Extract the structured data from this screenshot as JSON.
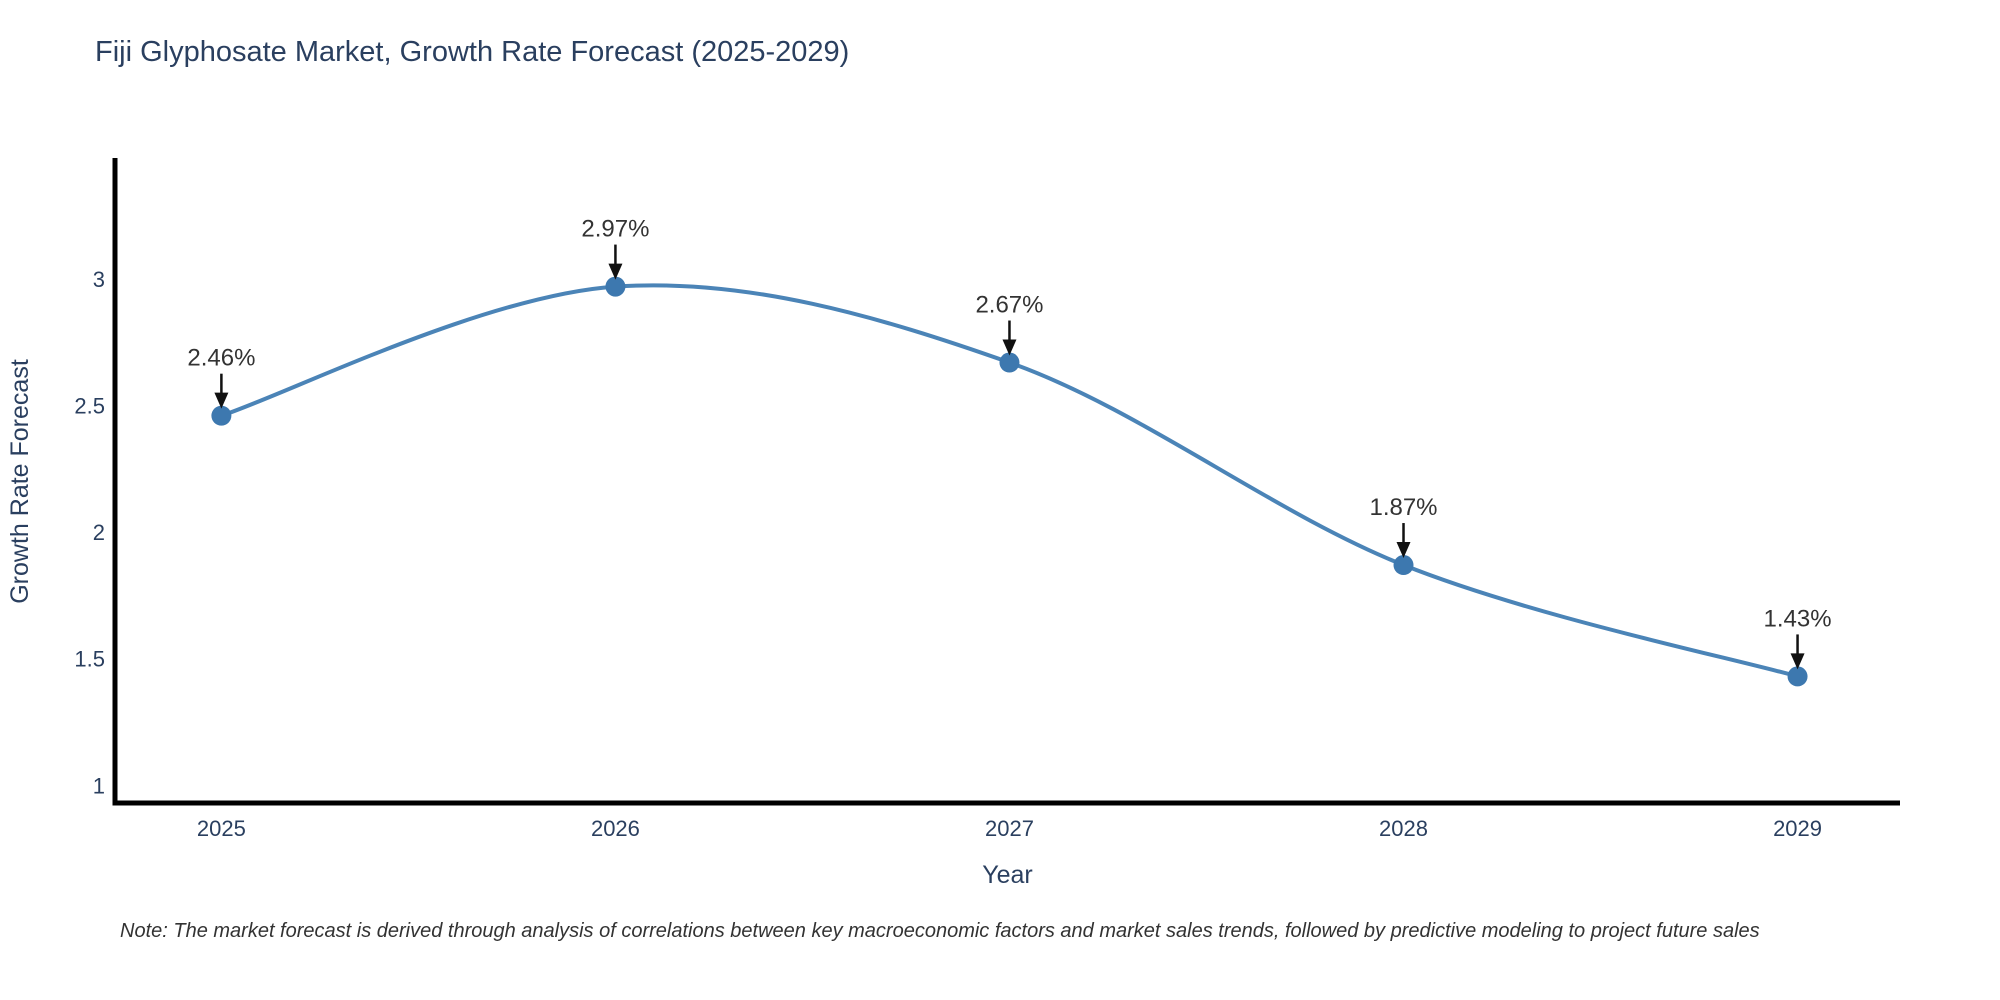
{
  "title": "Fiji Glyphosate Market, Growth Rate Forecast (2025-2029)",
  "note": "Note: The market forecast is derived through analysis of correlations between key macroeconomic factors and market sales trends, followed by predictive modeling to project future sales",
  "chart_data": {
    "type": "line",
    "line_shape": "spline",
    "title": "Fiji Glyphosate Market, Growth Rate Forecast (2025-2029)",
    "xlabel": "Year",
    "ylabel": "Growth Rate Forecast",
    "x": [
      2025,
      2026,
      2027,
      2028,
      2029
    ],
    "y": [
      2.46,
      2.97,
      2.67,
      1.87,
      1.43
    ],
    "point_labels": [
      "2.46%",
      "2.97%",
      "2.67%",
      "1.87%",
      "1.43%"
    ],
    "x_tick_labels": [
      "2025",
      "2026",
      "2027",
      "2028",
      "2029"
    ],
    "y_tick_values": [
      1,
      1.5,
      2,
      2.5,
      3
    ],
    "y_tick_labels": [
      "1",
      "1.5",
      "2",
      "2.5",
      "3"
    ],
    "xlim": [
      2024.73,
      2029.26
    ],
    "ylim": [
      0.93,
      3.47
    ],
    "grid": false,
    "legend_position": "none",
    "annotations_have_arrows": true,
    "colors": {
      "line": "#4b84b7",
      "marker": "#3d78af",
      "axis_line": "#000000",
      "title_text": "#2a3f5f",
      "tick_text": "#2a3f5f",
      "axis_title_text": "#2a3f5f",
      "annotation_text": "#333333",
      "arrow": "#111111",
      "background": "#ffffff"
    }
  }
}
